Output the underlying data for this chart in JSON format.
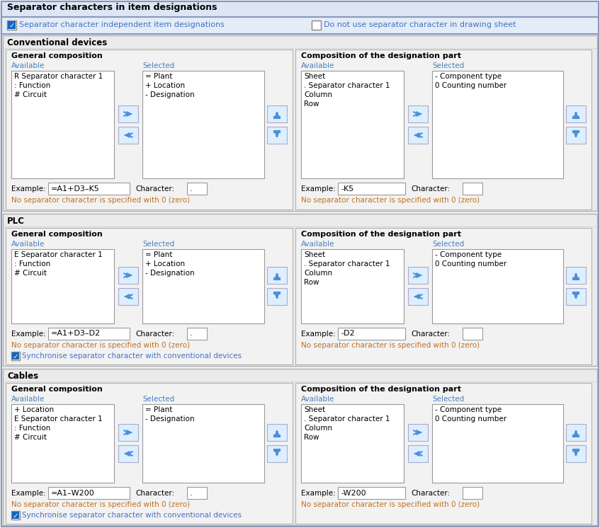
{
  "bg_color": "#f0f0f0",
  "white": "#ffffff",
  "blue_text": "#4472c4",
  "checkbox_blue": "#1565c0",
  "arrow_blue": "#4a90d9",
  "label_color": "#4a7fbd",
  "note_color": "#c07020",
  "section_bg": "#e8e8e8",
  "subpanel_bg": "#f0f0f0",
  "header_bg": "#c8d8f0",
  "header_title_bg": "#dce6f5",
  "cb_row_bg": "#e4ecf8",
  "main_title": "Separator characters in item designations",
  "cb1_text": "Separator character independent item designations",
  "cb2_text": "Do not use separator character in drawing sheet",
  "sections": [
    {
      "name": "Conventional devices",
      "gc": {
        "title": "General composition",
        "avail_items": [
          "R Separator character 1",
          ": Function",
          "# Circuit"
        ],
        "sel_items": [
          "= Plant",
          "+ Location",
          "- Designation"
        ],
        "example": "=A1+D3–K5",
        "char": "."
      },
      "dp": {
        "title": "Composition of the designation part",
        "avail_items": [
          "Sheet",
          ". Separator character 1",
          "Column",
          "Row"
        ],
        "sel_items": [
          "- Component type",
          "0 Counting number"
        ],
        "example": "-K5",
        "char": ""
      },
      "sync": false,
      "note": "No separator character is specified with 0 (zero)"
    },
    {
      "name": "PLC",
      "gc": {
        "title": "General composition",
        "avail_items": [
          "E Separator character 1",
          ": Function",
          "# Circuit"
        ],
        "sel_items": [
          "= Plant",
          "+ Location",
          "- Designation"
        ],
        "example": "=A1+D3–D2",
        "char": "."
      },
      "dp": {
        "title": "Composition of the designation part",
        "avail_items": [
          "Sheet",
          ". Separator character 1",
          "Column",
          "Row"
        ],
        "sel_items": [
          "- Component type",
          "0 Counting number"
        ],
        "example": "-D2",
        "char": ""
      },
      "sync": true,
      "note": "No separator character is specified with 0 (zero)",
      "sync_text": "Synchronise separator character with conventional devices"
    },
    {
      "name": "Cables",
      "gc": {
        "title": "General composition",
        "avail_items": [
          "+ Location",
          "E Separator character 1",
          ": Function",
          "# Circuit"
        ],
        "sel_items": [
          "= Plant",
          "- Designation"
        ],
        "example": "=A1–W200",
        "char": "."
      },
      "dp": {
        "title": "Composition of the designation part",
        "avail_items": [
          "Sheet",
          ". Separator character 1",
          "Column",
          "Row"
        ],
        "sel_items": [
          "- Component type",
          "0 Counting number"
        ],
        "example": "-W200",
        "char": ""
      },
      "sync": true,
      "note": "No separator character is specified with 0 (zero)",
      "sync_text": "Synchronise separator character with conventional devices"
    }
  ]
}
